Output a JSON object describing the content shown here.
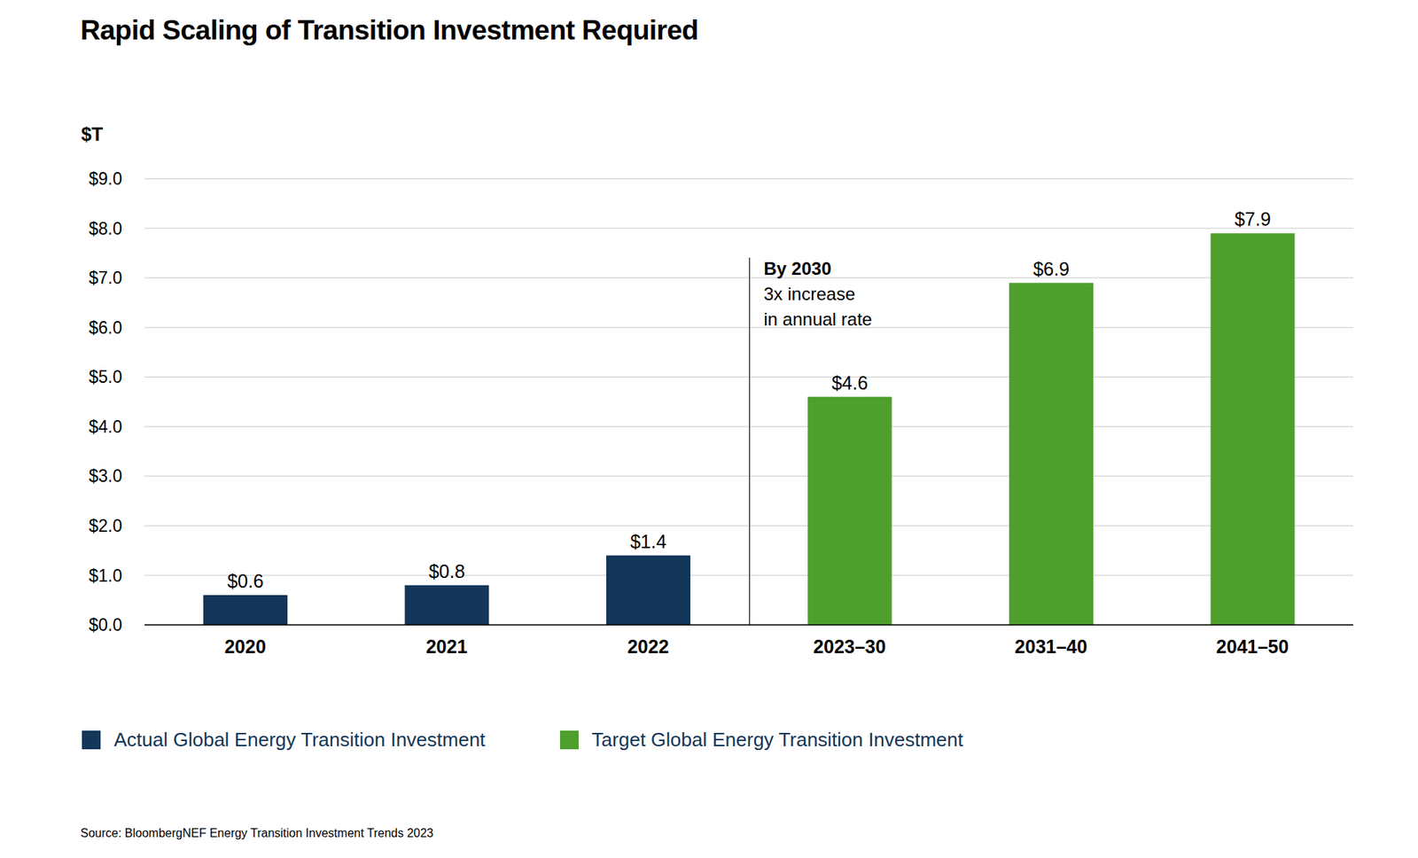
{
  "chart_data": {
    "type": "bar",
    "title": "Rapid Scaling of Transition Investment Required",
    "y_label": "$T",
    "categories": [
      "2020",
      "2021",
      "2022",
      "2023–30",
      "2031–40",
      "2041–50"
    ],
    "series": [
      {
        "name": "Actual Global Energy Transition Investment",
        "color": "#133659",
        "values": [
          0.6,
          0.8,
          1.4,
          null,
          null,
          null
        ],
        "value_labels": [
          "$0.6",
          "$0.8",
          "$1.4",
          null,
          null,
          null
        ]
      },
      {
        "name": "Target Global Energy Transition Investment",
        "color": "#4f9f2f",
        "values": [
          null,
          null,
          null,
          4.6,
          6.9,
          7.9
        ],
        "value_labels": [
          null,
          null,
          null,
          "$4.6",
          "$6.9",
          "$7.9"
        ]
      }
    ],
    "ylim": [
      0,
      9
    ],
    "yticks": [
      {
        "value": 0,
        "label": "$0.0"
      },
      {
        "value": 1,
        "label": "$1.0"
      },
      {
        "value": 2,
        "label": "$2.0"
      },
      {
        "value": 3,
        "label": "$3.0"
      },
      {
        "value": 4,
        "label": "$4.0"
      },
      {
        "value": 5,
        "label": "$5.0"
      },
      {
        "value": 6,
        "label": "$6.0"
      },
      {
        "value": 7,
        "label": "$7.0"
      },
      {
        "value": 8,
        "label": "$8.0"
      },
      {
        "value": 9,
        "label": "$9.0"
      }
    ],
    "grid": true,
    "data_labels": true,
    "legend": "bottom",
    "annotations": [
      {
        "title": "By 2030",
        "lines": [
          "3x increase",
          "in annual rate"
        ]
      }
    ],
    "source": "Source: BloombergNEF Energy Transition Investment Trends 2023"
  }
}
